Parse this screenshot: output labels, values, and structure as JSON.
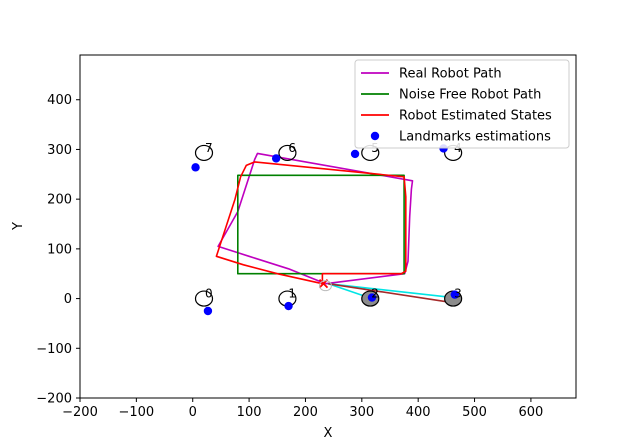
{
  "chart_data": {
    "type": "line",
    "title": "",
    "xlabel": "X",
    "ylabel": "Y",
    "xlim": [
      -200,
      680
    ],
    "ylim": [
      -200,
      490
    ],
    "xticks": [
      -200,
      -100,
      0,
      100,
      200,
      300,
      400,
      500,
      600
    ],
    "yticks": [
      -200,
      -100,
      0,
      100,
      200,
      300,
      400
    ],
    "grid": false,
    "legend_position": "upper right",
    "series": [
      {
        "name": "Real Robot Path",
        "color": "#bf00bf",
        "points": [
          [
            236,
            30
          ],
          [
            170,
            60
          ],
          [
            100,
            85
          ],
          [
            45,
            105
          ],
          [
            80,
            175
          ],
          [
            110,
            280
          ],
          [
            115,
            292
          ],
          [
            140,
            287
          ],
          [
            390,
            237
          ],
          [
            388,
            220
          ],
          [
            385,
            165
          ],
          [
            382,
            75
          ],
          [
            376,
            50
          ],
          [
            236,
            30
          ]
        ]
      },
      {
        "name": "Noise Free Robot Path",
        "color": "#008000",
        "points": [
          [
            280,
            50
          ],
          [
            80,
            50
          ],
          [
            80,
            248
          ],
          [
            375,
            248
          ],
          [
            375,
            50
          ],
          [
            280,
            50
          ]
        ]
      },
      {
        "name": "Robot Estimated States",
        "color": "#ff0000",
        "points": [
          [
            230,
            30
          ],
          [
            150,
            50
          ],
          [
            90,
            68
          ],
          [
            42,
            85
          ],
          [
            75,
            200
          ],
          [
            85,
            245
          ],
          [
            95,
            268
          ],
          [
            110,
            275
          ],
          [
            375,
            245
          ],
          [
            378,
            205
          ],
          [
            378,
            55
          ],
          [
            370,
            50
          ],
          [
            230,
            50
          ],
          [
            230,
            30
          ]
        ]
      }
    ],
    "landmarks_true": [
      {
        "id": "0",
        "x": 20,
        "y": 0
      },
      {
        "id": "1",
        "x": 168,
        "y": 0
      },
      {
        "id": "2",
        "x": 315,
        "y": 0
      },
      {
        "id": "3",
        "x": 462,
        "y": 0
      },
      {
        "id": "4",
        "x": 462,
        "y": 293
      },
      {
        "id": "5",
        "x": 315,
        "y": 293
      },
      {
        "id": "6",
        "x": 168,
        "y": 293
      },
      {
        "id": "7",
        "x": 20,
        "y": 293
      }
    ],
    "observed_landmarks": [
      "2",
      "3"
    ],
    "landmarks_estimated": {
      "name": "Landmarks estimations",
      "color": "#0000ff",
      "points": [
        [
          27,
          -25
        ],
        [
          170,
          -15
        ],
        [
          318,
          2
        ],
        [
          465,
          8
        ],
        [
          445,
          302
        ],
        [
          288,
          291
        ],
        [
          148,
          282
        ],
        [
          5,
          264
        ]
      ]
    },
    "robot_marker": {
      "x": 232,
      "y": 30,
      "color": "#ff0000"
    },
    "observation_lines": [
      {
        "color": "#00e5e5",
        "from": [
          240,
          30
        ],
        "to": [
          318,
          0
        ]
      },
      {
        "color": "#00e5e5",
        "from": [
          240,
          30
        ],
        "to": [
          462,
          2
        ]
      },
      {
        "color": "#a52a2a",
        "from": [
          240,
          30
        ],
        "to": [
          460,
          -8
        ]
      }
    ]
  }
}
